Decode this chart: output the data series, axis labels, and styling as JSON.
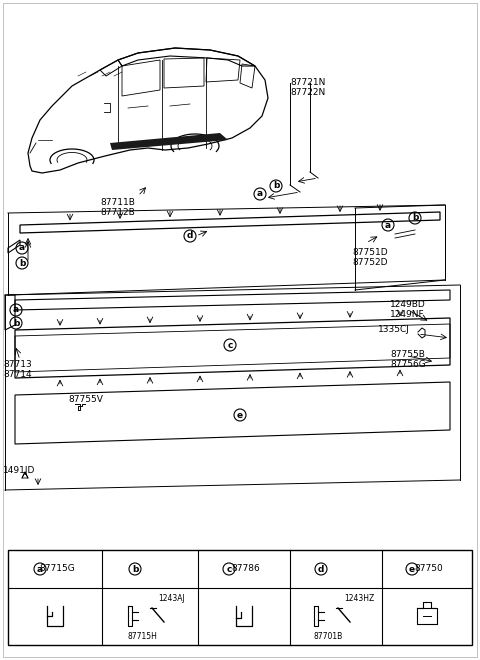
{
  "bg_color": "#ffffff",
  "text_color": "#000000",
  "line_color": "#000000",
  "fig_width": 4.8,
  "fig_height": 6.6,
  "dpi": 100,
  "parts": {
    "car_label1": "87711B\n87712B",
    "car_label2": "87721N\n87722N",
    "part_87751D": "87751D\n87752D",
    "part_1249BD": "1249BD\n1249NF",
    "part_1335CJ": "1335CJ",
    "part_87755B": "87755B\n87756G",
    "part_87713": "87713\n87714",
    "part_87755V": "87755V",
    "part_1491JD": "1491JD",
    "legend_a": "87715G",
    "legend_b1": "1243AJ",
    "legend_b2": "87715H",
    "legend_c": "87786",
    "legend_d1": "1243HZ",
    "legend_d2": "87701B",
    "legend_e": "87750"
  }
}
